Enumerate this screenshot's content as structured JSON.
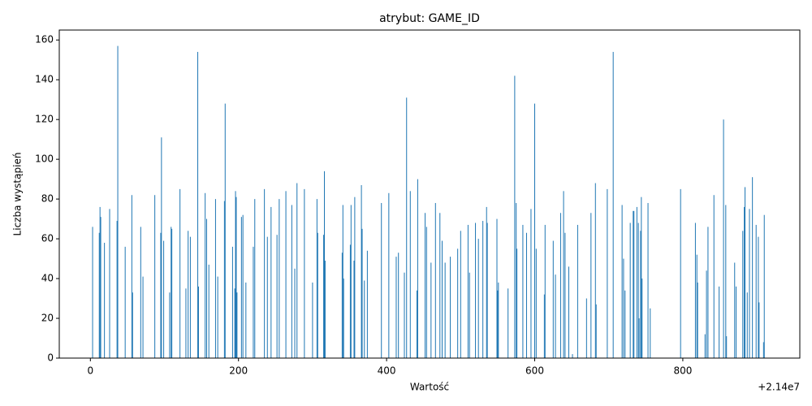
{
  "chart_data": {
    "type": "bar",
    "title": "atrybut: GAME_ID",
    "xlabel": "Wartość",
    "ylabel": "Liczba wystąpień",
    "x_offset_label": "+2.14e7",
    "x": [
      21400003,
      21400012,
      21400013,
      21400014,
      21400019,
      21400026,
      21400036,
      21400037,
      21400047,
      21400056,
      21400057,
      21400068,
      21400071,
      21400087,
      21400095,
      21400096,
      21400099,
      21400107,
      21400109,
      21400110,
      21400121,
      21400129,
      21400132,
      21400135,
      21400145,
      21400146,
      21400155,
      21400157,
      21400160,
      21400169,
      21400172,
      21400181,
      21400182,
      21400192,
      21400195,
      21400196,
      21400197,
      21400198,
      21400204,
      21400206,
      21400210,
      21400220,
      21400222,
      21400235,
      21400239,
      21400244,
      21400252,
      21400255,
      21400264,
      21400272,
      21400276,
      21400279,
      21400289,
      21400300,
      21400306,
      21400307,
      21400315,
      21400316,
      21400317,
      21400340,
      21400341,
      21400342,
      21400351,
      21400352,
      21400356,
      21400357,
      21400366,
      21400367,
      21400370,
      21400374,
      21400393,
      21400403,
      21400413,
      21400416,
      21400424,
      21400427,
      21400432,
      21400441,
      21400442,
      21400452,
      21400454,
      21400460,
      21400466,
      21400472,
      21400475,
      21400479,
      21400486,
      21400496,
      21400500,
      21400510,
      21400512,
      21400520,
      21400524,
      21400530,
      21400535,
      21400536,
      21400549,
      21400550,
      21400551,
      21400564,
      21400573,
      21400575,
      21400576,
      21400584,
      21400589,
      21400595,
      21400600,
      21400602,
      21400613,
      21400614,
      21400625,
      21400628,
      21400635,
      21400639,
      21400641,
      21400646,
      21400651,
      21400658,
      21400670,
      21400676,
      21400682,
      21400683,
      21400698,
      21400706,
      21400718,
      21400720,
      21400722,
      21400729,
      21400733,
      21400734,
      21400738,
      21400740,
      21400741,
      21400743,
      21400744,
      21400745,
      21400753,
      21400756,
      21400797,
      21400817,
      21400819,
      21400820,
      21400830,
      21400832,
      21400834,
      21400842,
      21400849,
      21400855,
      21400858,
      21400859,
      21400870,
      21400872,
      21400881,
      21400883,
      21400884,
      21400887,
      21400890,
      21400894,
      21400899,
      21400902,
      21400903,
      21400909,
      21400910
    ],
    "values": [
      66,
      63,
      76,
      71,
      58,
      75,
      69,
      157,
      56,
      82,
      33,
      66,
      41,
      82,
      63,
      111,
      59,
      33,
      66,
      65,
      85,
      35,
      64,
      61,
      154,
      36,
      83,
      70,
      47,
      80,
      41,
      79,
      128,
      56,
      35,
      84,
      81,
      33,
      71,
      72,
      38,
      56,
      80,
      85,
      61,
      76,
      62,
      80,
      84,
      77,
      45,
      88,
      85,
      38,
      80,
      63,
      62,
      94,
      49,
      53,
      77,
      40,
      57,
      77,
      49,
      81,
      87,
      65,
      39,
      54,
      78,
      83,
      51,
      53,
      43,
      131,
      84,
      34,
      90,
      73,
      66,
      48,
      78,
      73,
      59,
      48,
      51,
      55,
      64,
      67,
      43,
      68,
      60,
      69,
      76,
      68,
      70,
      34,
      38,
      35,
      142,
      78,
      55,
      67,
      63,
      75,
      128,
      55,
      32,
      67,
      59,
      42,
      73,
      84,
      63,
      46,
      2,
      67,
      30,
      73,
      88,
      27,
      85,
      154,
      77,
      50,
      34,
      68,
      74,
      74,
      76,
      68,
      20,
      64,
      81,
      40,
      78,
      25,
      85,
      68,
      52,
      38,
      12,
      44,
      66,
      82,
      36,
      120,
      77,
      11,
      48,
      36,
      64,
      76,
      86,
      33,
      75,
      91,
      67,
      61,
      28,
      8,
      72
    ],
    "color": "#1f77b4",
    "xlim": [
      21399958,
      21400958
    ],
    "xticks": [
      {
        "value": 21400000,
        "label": "0"
      },
      {
        "value": 21400200,
        "label": "200"
      },
      {
        "value": 21400400,
        "label": "400"
      },
      {
        "value": 21400600,
        "label": "600"
      },
      {
        "value": 21400800,
        "label": "800"
      }
    ],
    "ylim": [
      0,
      165
    ],
    "yticks": [
      0,
      20,
      40,
      60,
      80,
      100,
      120,
      140,
      160
    ],
    "grid": false
  }
}
